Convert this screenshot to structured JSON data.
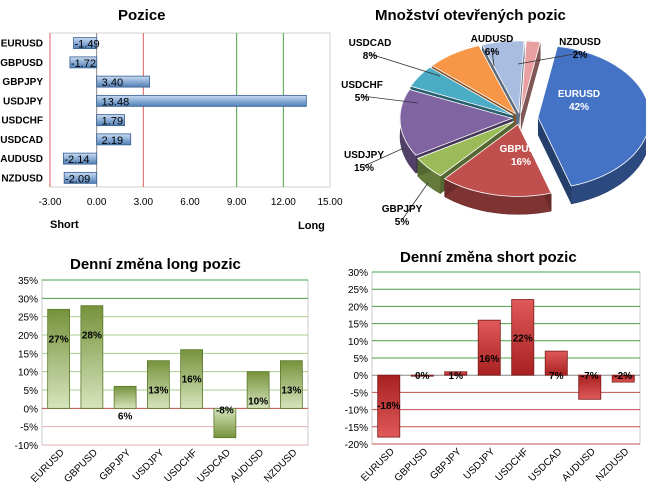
{
  "chart_data": [
    {
      "id": "pozice",
      "type": "bar",
      "orientation": "horizontal",
      "title": "Pozice",
      "categories": [
        "EURUSD",
        "GBPUSD",
        "GBPJPY",
        "USDJPY",
        "USDCHF",
        "USDCAD",
        "AUDUSD",
        "NZDUSD"
      ],
      "values": [
        -1.49,
        -1.72,
        3.4,
        13.48,
        1.79,
        2.19,
        -2.14,
        -2.09
      ],
      "value_labels": [
        "-1.49",
        "-1.72",
        "3.40",
        "13.48",
        "1.79",
        "2.19",
        "-2.14",
        "-2.09"
      ],
      "xlim": [
        -3,
        15
      ],
      "xticks": [
        "-3.00",
        "0.00",
        "3.00",
        "6.00",
        "9.00",
        "12.00",
        "15.00"
      ],
      "short_label": "Short",
      "long_label": "Long",
      "colors": {
        "bar": "#4f7fb8",
        "bar_light": "#c9dcf2",
        "red_line": "#e06060",
        "green_line": "#4aa04a"
      }
    },
    {
      "id": "mnozstvi",
      "type": "pie",
      "title": "Množství otevřených pozic",
      "slices": [
        {
          "label": "EURUSD",
          "value": 42,
          "text": "42%",
          "color": "#4472c4"
        },
        {
          "label": "GBPUSD",
          "value": 16,
          "text": "16%",
          "color": "#c0504d"
        },
        {
          "label": "GBPJPY",
          "value": 5,
          "text": "5%",
          "color": "#9bbb59"
        },
        {
          "label": "USDJPY",
          "value": 15,
          "text": "15%",
          "color": "#8064a2"
        },
        {
          "label": "USDCHF",
          "value": 5,
          "text": "5%",
          "color": "#4bacc6"
        },
        {
          "label": "USDCAD",
          "value": 8,
          "text": "8%",
          "color": "#f79646"
        },
        {
          "label": "AUDUSD",
          "value": 6,
          "text": "6%",
          "color": "#a9bde0"
        },
        {
          "label": "NZDUSD",
          "value": 2,
          "text": "2%",
          "color": "#e8a0a0"
        }
      ]
    },
    {
      "id": "long",
      "type": "bar",
      "title": "Denní změna long pozic",
      "categories": [
        "EURUSD",
        "GBPUSD",
        "GBPJPY",
        "USDJPY",
        "USDCHF",
        "USDCAD",
        "AUDUSD",
        "NZDUSD"
      ],
      "values": [
        27,
        28,
        6,
        13,
        16,
        -8,
        10,
        13
      ],
      "value_labels": [
        "27%",
        "28%",
        "6%",
        "13%",
        "16%",
        "-8%",
        "10%",
        "13%"
      ],
      "ylim": [
        -10,
        35
      ],
      "yticks": [
        "-10%",
        "-5%",
        "0%",
        "5%",
        "10%",
        "15%",
        "20%",
        "25%",
        "30%",
        "35%"
      ],
      "colors": {
        "bar_top": "#76923c",
        "bar_bottom": "#d7e4bd",
        "grid": "#4aa04a",
        "zero": "#c0504d"
      }
    },
    {
      "id": "short",
      "type": "bar",
      "title": "Denní změna short pozic",
      "categories": [
        "EURUSD",
        "GBPUSD",
        "GBPJPY",
        "USDJPY",
        "USDCHF",
        "USDCAD",
        "AUDUSD",
        "NZDUSD"
      ],
      "values": [
        -18,
        0,
        1,
        16,
        22,
        7,
        -7,
        -2
      ],
      "value_labels": [
        "-18%",
        "0%",
        "1%",
        "16%",
        "22%",
        "7%",
        "-7%",
        "-2%"
      ],
      "ylim": [
        -20,
        30
      ],
      "yticks": [
        "-20%",
        "-15%",
        "-10%",
        "-5%",
        "0%",
        "5%",
        "10%",
        "15%",
        "20%",
        "25%",
        "30%"
      ],
      "colors": {
        "bar_top": "#e05a5a",
        "bar_bottom": "#a82020",
        "grid_pos": "#4aa04a",
        "grid_neg": "#c0504d"
      }
    }
  ]
}
